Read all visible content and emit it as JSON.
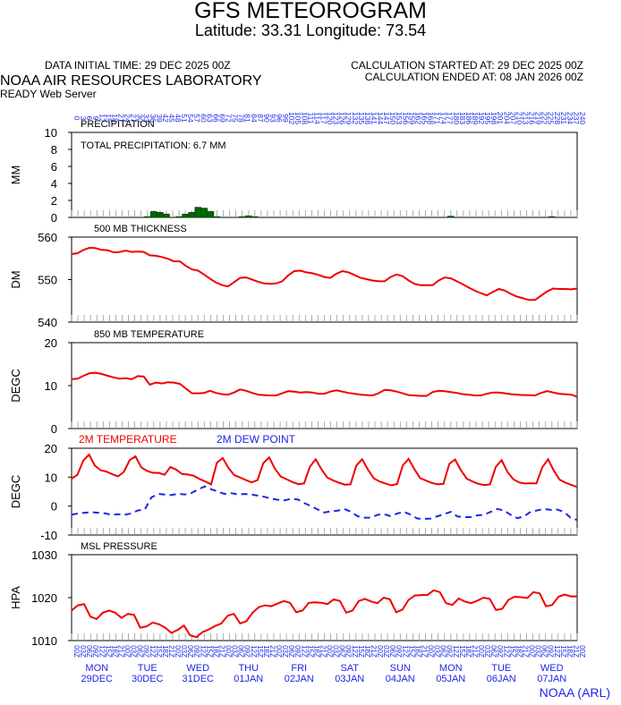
{
  "header": {
    "title": "GFS METEOROGRAM",
    "subtitle": "Latitude: 33.31 Longitude:  73.54",
    "data_initial": "DATA INITIAL TIME: 29 DEC 2025 00Z",
    "calc_started": "CALCULATION STARTED AT: 29 DEC 2025 00Z",
    "calc_ended": "CALCULATION ENDED AT: 08 JAN 2026 00Z",
    "lab": "NOAA AIR RESOURCES LABORATORY",
    "server": "READY Web Server"
  },
  "footer": {
    "credit": "NOAA (ARL)"
  },
  "colors": {
    "red": "#f00000",
    "blue": "#1c27e4",
    "green": "#006600",
    "grid": "#999999"
  },
  "chart_data": [
    {
      "type": "bar",
      "name": "precip",
      "title": "PRECIPITATION",
      "annotation": "TOTAL PRECIPITATION:   6.7 MM",
      "ylabel": "MM",
      "ylim": [
        0,
        10
      ],
      "yticks": [
        0,
        2,
        4,
        6,
        8,
        10
      ],
      "x_hours": [
        36,
        39,
        42,
        45,
        51,
        54,
        57,
        60,
        63,
        66,
        69,
        81,
        84,
        87,
        180,
        228
      ],
      "values": [
        0.1,
        0.7,
        0.6,
        0.4,
        0.1,
        0.4,
        0.6,
        1.2,
        1.1,
        0.7,
        0.1,
        0.1,
        0.2,
        0.1,
        0.15,
        0.1
      ]
    },
    {
      "type": "line",
      "name": "thick",
      "title": "500 MB  THICKNESS",
      "ylabel": "DM",
      "ylim": [
        540,
        560
      ],
      "yticks": [
        540,
        550,
        560
      ],
      "color": "red",
      "values": [
        556.0,
        556.2,
        557.0,
        557.5,
        557.4,
        557.0,
        556.9,
        556.4,
        556.5,
        556.8,
        556.5,
        556.6,
        556.5,
        555.7,
        555.6,
        555.3,
        554.9,
        554.3,
        554.3,
        553.2,
        552.4,
        552.1,
        551.2,
        550.2,
        549.3,
        548.7,
        548.4,
        549.4,
        550.4,
        550.5,
        550.0,
        549.5,
        549.1,
        549.0,
        549.1,
        549.6,
        551.0,
        552.0,
        552.1,
        551.7,
        551.5,
        551.1,
        550.6,
        550.4,
        551.4,
        552.0,
        551.7,
        551.1,
        550.4,
        550.1,
        549.8,
        549.6,
        549.6,
        550.6,
        551.2,
        550.8,
        549.8,
        549.0,
        548.7,
        548.7,
        548.7,
        549.8,
        550.5,
        550.3,
        549.6,
        548.9,
        548.1,
        547.4,
        546.8,
        546.3,
        547.1,
        547.8,
        547.4,
        546.6,
        546.0,
        545.6,
        545.2,
        545.2,
        546.2,
        547.2,
        547.9,
        547.8,
        547.8,
        547.7,
        547.9
      ]
    },
    {
      "type": "line",
      "name": "t850",
      "title": "850 MB  TEMPERATURE",
      "ylabel": "DEGC",
      "ylim": [
        0,
        20
      ],
      "yticks": [
        0,
        10,
        20
      ],
      "color": "red",
      "values": [
        11.5,
        11.6,
        12.3,
        12.9,
        13.0,
        12.7,
        12.3,
        11.9,
        11.6,
        11.7,
        11.5,
        12.2,
        12.1,
        10.2,
        10.7,
        10.5,
        10.8,
        10.7,
        10.4,
        9.3,
        8.2,
        8.2,
        8.3,
        8.8,
        8.3,
        8.0,
        7.9,
        8.4,
        9.1,
        8.8,
        8.3,
        7.9,
        7.8,
        7.7,
        7.7,
        8.2,
        8.7,
        8.6,
        8.4,
        8.5,
        8.4,
        8.1,
        8.1,
        8.6,
        8.9,
        8.6,
        8.3,
        8.1,
        7.9,
        7.8,
        7.7,
        8.2,
        9.0,
        8.9,
        8.6,
        8.2,
        7.8,
        7.7,
        7.6,
        7.6,
        8.5,
        8.8,
        8.7,
        8.5,
        8.3,
        8.0,
        7.9,
        7.7,
        7.7,
        8.1,
        8.4,
        8.4,
        8.2,
        8.0,
        7.9,
        7.8,
        7.8,
        7.7,
        8.3,
        8.7,
        8.4,
        8.1,
        8.0,
        7.9,
        7.4
      ]
    },
    {
      "type": "line",
      "name": "t2m",
      "ylabel": "DEGC",
      "ylim": [
        -10,
        20
      ],
      "yticks": [
        -10,
        0,
        10,
        20
      ],
      "legend_temp": "2M TEMPERATURE",
      "legend_dew": "2M  DEW POINT",
      "series": [
        {
          "name": "2M TEMPERATURE",
          "color": "red",
          "style": "solid",
          "values": [
            9.5,
            10.8,
            15.7,
            17.8,
            14.0,
            12.4,
            11.9,
            11.0,
            10.3,
            11.8,
            15.9,
            17.2,
            13.4,
            12.1,
            11.5,
            11.5,
            10.8,
            13.5,
            12.6,
            11.1,
            10.9,
            10.5,
            9.4,
            8.5,
            7.5,
            15.0,
            16.6,
            13.2,
            10.7,
            9.9,
            9.0,
            8.2,
            9.0,
            14.9,
            16.8,
            12.9,
            10.2,
            9.3,
            8.3,
            7.6,
            7.8,
            13.6,
            16.2,
            12.7,
            9.9,
            8.9,
            8.1,
            7.4,
            7.5,
            14.0,
            16.2,
            12.6,
            9.6,
            8.5,
            7.8,
            7.2,
            7.6,
            14.1,
            16.3,
            12.7,
            9.6,
            8.8,
            8.0,
            7.5,
            7.7,
            14.6,
            16.1,
            12.4,
            9.5,
            8.5,
            7.7,
            7.3,
            7.5,
            13.6,
            15.9,
            11.8,
            9.3,
            8.2,
            7.8,
            7.9,
            7.8,
            13.4,
            16.2,
            12.2,
            9.1,
            8.1,
            7.3,
            6.6
          ]
        },
        {
          "name": "2M  DEW POINT",
          "color": "blue",
          "style": "dashed",
          "values": [
            -3.0,
            -2.5,
            -2.3,
            -2.1,
            -2.3,
            -2.5,
            -3.0,
            -2.8,
            -3.0,
            -2.5,
            -1.5,
            -1.2,
            3.0,
            4.2,
            4.0,
            3.8,
            4.3,
            4.0,
            4.5,
            5.7,
            6.8,
            5.8,
            5.0,
            4.2,
            4.5,
            4.0,
            4.2,
            4.0,
            3.6,
            3.2,
            2.6,
            2.2,
            2.0,
            2.5,
            2.3,
            1.0,
            0.0,
            -1.2,
            -2.2,
            -1.8,
            -1.6,
            -1.0,
            -2.0,
            -3.5,
            -4.0,
            -4.0,
            -3.0,
            -2.8,
            -3.5,
            -2.5,
            -2.0,
            -3.0,
            -4.3,
            -4.4,
            -4.3,
            -3.5,
            -2.8,
            -2.0,
            -3.6,
            -3.8,
            -3.8,
            -3.2,
            -3.0,
            -2.0,
            -1.0,
            -1.5,
            -3.0,
            -4.2,
            -3.6,
            -2.0,
            -1.5,
            -1.0,
            -1.3,
            -1.2,
            -2.0,
            -4.0,
            -4.8
          ]
        }
      ]
    },
    {
      "type": "line",
      "name": "mslp",
      "title": "MSL PRESSURE",
      "ylabel": "HPA",
      "ylim": [
        1010,
        1030
      ],
      "yticks": [
        1010,
        1020,
        1030
      ],
      "color": "red",
      "values": [
        1017.0,
        1018.2,
        1018.5,
        1015.6,
        1015.0,
        1016.5,
        1017.0,
        1016.5,
        1015.3,
        1016.2,
        1016.0,
        1013.0,
        1013.3,
        1014.2,
        1013.8,
        1013.0,
        1011.8,
        1012.5,
        1013.5,
        1011.2,
        1010.8,
        1012.0,
        1012.6,
        1013.4,
        1014.0,
        1015.8,
        1016.2,
        1014.0,
        1014.5,
        1016.5,
        1017.8,
        1018.2,
        1018.0,
        1018.6,
        1019.2,
        1018.8,
        1016.6,
        1017.0,
        1018.8,
        1018.9,
        1018.8,
        1018.5,
        1019.6,
        1019.2,
        1016.5,
        1017.0,
        1019.2,
        1019.7,
        1019.1,
        1018.7,
        1020.0,
        1019.6,
        1016.6,
        1017.2,
        1019.5,
        1020.5,
        1020.6,
        1020.6,
        1021.7,
        1021.3,
        1018.7,
        1018.3,
        1019.8,
        1019.1,
        1018.7,
        1019.3,
        1020.0,
        1019.7,
        1017.1,
        1017.4,
        1019.5,
        1020.2,
        1020.1,
        1019.9,
        1021.3,
        1021.0,
        1018.0,
        1018.3,
        1020.2,
        1020.7,
        1020.3,
        1020.3
      ]
    }
  ],
  "x_axis": {
    "start_hour": 0,
    "end_hour": 240,
    "step_hours": 3,
    "days": [
      {
        "dow": "MON",
        "date": "29DEC"
      },
      {
        "dow": "TUE",
        "date": "30DEC"
      },
      {
        "dow": "WED",
        "date": "31DEC"
      },
      {
        "dow": "THU",
        "date": "01JAN"
      },
      {
        "dow": "FRI",
        "date": "02JAN"
      },
      {
        "dow": "SAT",
        "date": "03JAN"
      },
      {
        "dow": "SUN",
        "date": "04JAN"
      },
      {
        "dow": "MON",
        "date": "05JAN"
      },
      {
        "dow": "TUE",
        "date": "06JAN"
      },
      {
        "dow": "WED",
        "date": "07JAN"
      }
    ]
  }
}
